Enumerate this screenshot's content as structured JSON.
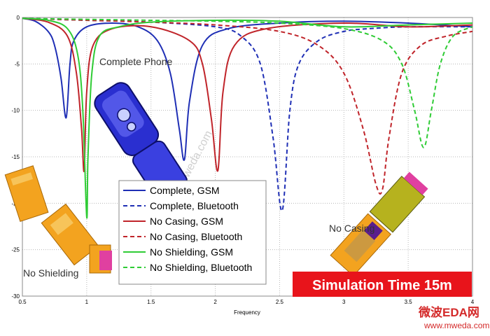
{
  "chart_data": {
    "type": "line",
    "xlabel": "Frequency",
    "ylabel": "",
    "xlim": [
      0.5,
      4
    ],
    "ylim": [
      -30,
      0
    ],
    "x_ticks": [
      "0.5",
      "1",
      "1.5",
      "2",
      "2.5",
      "3",
      "3.5",
      "4"
    ],
    "y_ticks": [
      "0",
      "-5",
      "-10",
      "-15",
      "-20",
      "-25",
      "-30"
    ],
    "grid": true,
    "legend_position": "center-bottom",
    "series": [
      {
        "name": "Complete, GSM",
        "color": "#1f2fb5",
        "dash": "solid",
        "x": [
          0.5,
          0.6,
          0.7,
          0.75,
          0.8,
          0.84,
          0.87,
          0.9,
          1.0,
          1.2,
          1.4,
          1.55,
          1.65,
          1.72,
          1.76,
          1.8,
          1.9,
          2.1,
          2.5,
          3.0,
          3.5,
          4.0
        ],
        "y": [
          -0.1,
          -0.4,
          -1.5,
          -3,
          -6.5,
          -10.8,
          -5,
          -2.5,
          -1,
          -0.6,
          -1,
          -2.5,
          -6,
          -12,
          -15.3,
          -9,
          -3,
          -1.2,
          -0.6,
          -0.4,
          -0.6,
          -1
        ]
      },
      {
        "name": "Complete, Bluetooth",
        "color": "#1f2fb5",
        "dash": "dashed",
        "x": [
          0.5,
          1.0,
          1.5,
          2.0,
          2.2,
          2.35,
          2.45,
          2.52,
          2.58,
          2.65,
          2.8,
          3.0,
          3.2,
          3.5,
          4.0
        ],
        "y": [
          -0.1,
          -0.3,
          -0.5,
          -1,
          -2,
          -5,
          -13,
          -20.8,
          -10,
          -5,
          -2.5,
          -1.5,
          -1.2,
          -1,
          -1
        ]
      },
      {
        "name": "No Casing, GSM",
        "color": "#c0242a",
        "dash": "solid",
        "x": [
          0.5,
          0.7,
          0.85,
          0.92,
          0.96,
          0.98,
          1.0,
          1.05,
          1.2,
          1.5,
          1.8,
          1.9,
          1.97,
          2.02,
          2.06,
          2.15,
          2.4,
          3.0,
          3.5,
          4.0
        ],
        "y": [
          -0.1,
          -0.5,
          -2,
          -6,
          -12,
          -16.5,
          -8,
          -3,
          -1.2,
          -1,
          -2.5,
          -5,
          -11,
          -16.5,
          -8,
          -3,
          -1.2,
          -0.6,
          -1,
          -0.8
        ]
      },
      {
        "name": "No Casing, Bluetooth",
        "color": "#c0242a",
        "dash": "dashed",
        "x": [
          0.5,
          1.0,
          1.5,
          2.0,
          2.5,
          2.8,
          3.0,
          3.15,
          3.25,
          3.3,
          3.35,
          3.45,
          3.6,
          3.8,
          4.0
        ],
        "y": [
          -0.1,
          -0.3,
          -0.5,
          -0.8,
          -1.5,
          -3,
          -6,
          -12,
          -18,
          -18.5,
          -13,
          -6,
          -3,
          -2,
          -1.5
        ]
      },
      {
        "name": "No Shielding, GSM",
        "color": "#2fcc35",
        "dash": "solid",
        "x": [
          0.5,
          0.7,
          0.85,
          0.93,
          0.97,
          1.0,
          1.01,
          1.04,
          1.1,
          1.25,
          1.5,
          2.0,
          2.5,
          3.0,
          3.5,
          4.0
        ],
        "y": [
          -0.1,
          -0.3,
          -1.2,
          -4,
          -10,
          -21.5,
          -15,
          -6,
          -2,
          -1,
          -0.5,
          -0.3,
          -0.4,
          -1,
          -0.8,
          -0.6
        ]
      },
      {
        "name": "No Shielding, Bluetooth",
        "color": "#2fcc35",
        "dash": "dashed",
        "x": [
          0.5,
          1.0,
          1.5,
          2.0,
          2.5,
          3.0,
          3.3,
          3.45,
          3.55,
          3.62,
          3.68,
          3.75,
          3.85,
          4.0
        ],
        "y": [
          -0.1,
          -0.2,
          -0.3,
          -0.4,
          -0.6,
          -1.2,
          -2.5,
          -5,
          -10,
          -14,
          -10,
          -5,
          -2,
          -1
        ]
      }
    ]
  },
  "annotations": {
    "complete_phone": "Complete Phone",
    "no_shielding": "No Shielding",
    "no_casing": "No Casing",
    "banner": "Simulation Time 15m",
    "banner_color": "#e8141b"
  },
  "watermark": {
    "cn": "微波EDA网",
    "url": "www.mweda.com",
    "diag": "www.mweda.com"
  }
}
